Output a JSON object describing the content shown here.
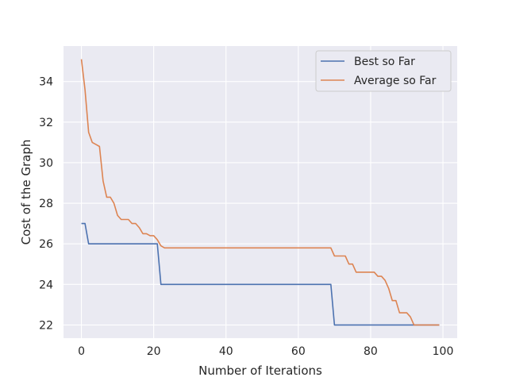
{
  "chart_data": {
    "type": "line",
    "title": "",
    "xlabel": "Number of Iterations",
    "ylabel": "Cost of the Graph",
    "xlim": [
      -4.95,
      103.95
    ],
    "ylim": [
      21.35,
      35.75
    ],
    "xticks": [
      0,
      20,
      40,
      60,
      80,
      100
    ],
    "yticks": [
      22,
      24,
      26,
      28,
      30,
      32,
      34
    ],
    "grid": true,
    "legend_position": "top-right",
    "series": [
      {
        "name": "Best so Far",
        "color": "#4c72b0",
        "points": [
          [
            0,
            27
          ],
          [
            1,
            27
          ],
          [
            2,
            26
          ],
          [
            21,
            26
          ],
          [
            22,
            24
          ],
          [
            69,
            24
          ],
          [
            70,
            22
          ],
          [
            99,
            22
          ]
        ]
      },
      {
        "name": "Average so Far",
        "color": "#dd8452",
        "points": [
          [
            0,
            35.1
          ],
          [
            1,
            33.6
          ],
          [
            2,
            31.5
          ],
          [
            3,
            31.0
          ],
          [
            4,
            30.9
          ],
          [
            5,
            30.8
          ],
          [
            6,
            29.1
          ],
          [
            7,
            28.3
          ],
          [
            8,
            28.3
          ],
          [
            9,
            28.0
          ],
          [
            10,
            27.4
          ],
          [
            11,
            27.2
          ],
          [
            12,
            27.2
          ],
          [
            13,
            27.2
          ],
          [
            14,
            27.0
          ],
          [
            15,
            27.0
          ],
          [
            16,
            26.8
          ],
          [
            17,
            26.5
          ],
          [
            18,
            26.5
          ],
          [
            19,
            26.4
          ],
          [
            20,
            26.4
          ],
          [
            21,
            26.2
          ],
          [
            22,
            25.9
          ],
          [
            23,
            25.8
          ],
          [
            69,
            25.8
          ],
          [
            70,
            25.4
          ],
          [
            73,
            25.4
          ],
          [
            74,
            25.0
          ],
          [
            75,
            25.0
          ],
          [
            76,
            24.6
          ],
          [
            81,
            24.6
          ],
          [
            82,
            24.4
          ],
          [
            83,
            24.4
          ],
          [
            84,
            24.2
          ],
          [
            85,
            23.8
          ],
          [
            86,
            23.2
          ],
          [
            87,
            23.2
          ],
          [
            88,
            22.6
          ],
          [
            90,
            22.6
          ],
          [
            91,
            22.4
          ],
          [
            92,
            22.0
          ],
          [
            99,
            22.0
          ]
        ]
      }
    ]
  }
}
